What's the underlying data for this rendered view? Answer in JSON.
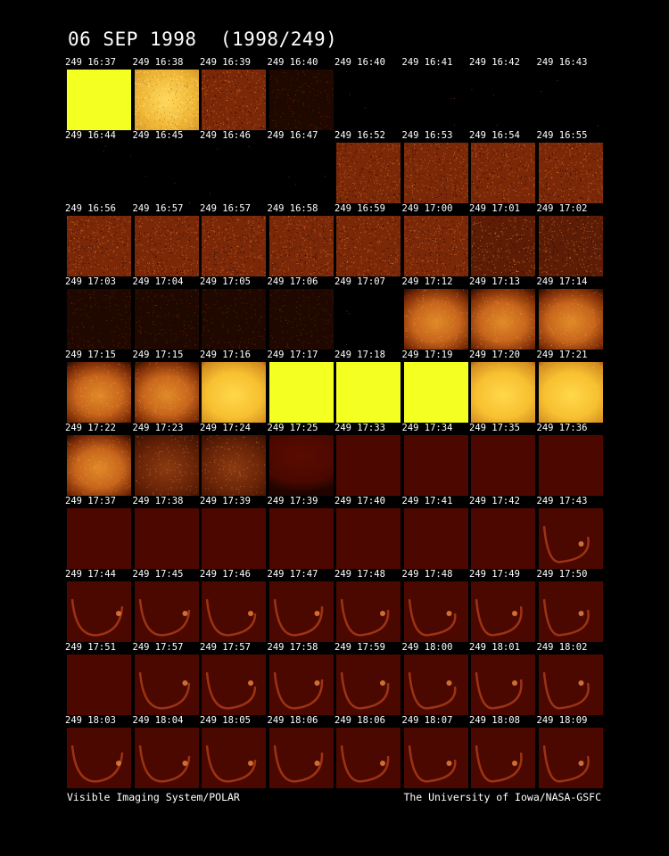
{
  "title": "06 SEP 1998  (1998/249)",
  "footer": {
    "left": "Visible Imaging System/POLAR",
    "right": "The University of Iowa/NASA-GSFC"
  },
  "frames": [
    [
      {
        "t": "249 16:37",
        "k": "sat"
      },
      {
        "t": "249 16:38",
        "k": "bright"
      },
      {
        "t": "249 16:39",
        "k": "noise"
      },
      {
        "t": "249 16:40",
        "k": "darknoise"
      },
      {
        "t": "249 16:40",
        "k": "black"
      },
      {
        "t": "249 16:41",
        "k": "black"
      },
      {
        "t": "249 16:42",
        "k": "black"
      },
      {
        "t": "249 16:43",
        "k": "black"
      }
    ],
    [
      {
        "t": "249 16:44",
        "k": "black"
      },
      {
        "t": "249 16:45",
        "k": "black"
      },
      {
        "t": "249 16:46",
        "k": "black"
      },
      {
        "t": "249 16:47",
        "k": "black"
      },
      {
        "t": "249 16:52",
        "k": "noise"
      },
      {
        "t": "249 16:53",
        "k": "noise"
      },
      {
        "t": "249 16:54",
        "k": "noise"
      },
      {
        "t": "249 16:55",
        "k": "noise"
      }
    ],
    [
      {
        "t": "249 16:56",
        "k": "noise"
      },
      {
        "t": "249 16:57",
        "k": "noise"
      },
      {
        "t": "249 16:57",
        "k": "noise"
      },
      {
        "t": "249 16:58",
        "k": "noise"
      },
      {
        "t": "249 16:59",
        "k": "noise"
      },
      {
        "t": "249 17:00",
        "k": "noise"
      },
      {
        "t": "249 17:01",
        "k": "noisedark"
      },
      {
        "t": "249 17:02",
        "k": "noisedark"
      }
    ],
    [
      {
        "t": "249 17:03",
        "k": "darknoise"
      },
      {
        "t": "249 17:04",
        "k": "darknoise"
      },
      {
        "t": "249 17:05",
        "k": "darknoise"
      },
      {
        "t": "249 17:06",
        "k": "darknoise"
      },
      {
        "t": "249 17:07",
        "k": "black"
      },
      {
        "t": "249 17:12",
        "k": "glow"
      },
      {
        "t": "249 17:13",
        "k": "glow"
      },
      {
        "t": "249 17:14",
        "k": "glow"
      }
    ],
    [
      {
        "t": "249 17:15",
        "k": "glow"
      },
      {
        "t": "249 17:15",
        "k": "glow"
      },
      {
        "t": "249 17:16",
        "k": "brightglow"
      },
      {
        "t": "249 17:17",
        "k": "sat"
      },
      {
        "t": "249 17:18",
        "k": "sat"
      },
      {
        "t": "249 17:19",
        "k": "sat"
      },
      {
        "t": "249 17:20",
        "k": "brightglow"
      },
      {
        "t": "249 17:21",
        "k": "brightglow"
      }
    ],
    [
      {
        "t": "249 17:22",
        "k": "glow"
      },
      {
        "t": "249 17:23",
        "k": "dimglow"
      },
      {
        "t": "249 17:24",
        "k": "dimglow"
      },
      {
        "t": "249 17:25",
        "k": "maroonarc"
      },
      {
        "t": "249 17:33",
        "k": "maroon"
      },
      {
        "t": "249 17:34",
        "k": "maroon"
      },
      {
        "t": "249 17:35",
        "k": "maroon"
      },
      {
        "t": "249 17:36",
        "k": "maroon"
      }
    ],
    [
      {
        "t": "249 17:37",
        "k": "maroon"
      },
      {
        "t": "249 17:38",
        "k": "maroon"
      },
      {
        "t": "249 17:39",
        "k": "maroon"
      },
      {
        "t": "249 17:39",
        "k": "maroon"
      },
      {
        "t": "249 17:40",
        "k": "maroon"
      },
      {
        "t": "249 17:41",
        "k": "maroon"
      },
      {
        "t": "249 17:42",
        "k": "maroon"
      },
      {
        "t": "249 17:43",
        "k": "oval"
      }
    ],
    [
      {
        "t": "249 17:44",
        "k": "oval"
      },
      {
        "t": "249 17:45",
        "k": "oval"
      },
      {
        "t": "249 17:46",
        "k": "oval"
      },
      {
        "t": "249 17:47",
        "k": "oval"
      },
      {
        "t": "249 17:48",
        "k": "oval"
      },
      {
        "t": "249 17:48",
        "k": "oval"
      },
      {
        "t": "249 17:49",
        "k": "oval"
      },
      {
        "t": "249 17:50",
        "k": "oval"
      }
    ],
    [
      {
        "t": "249 17:51",
        "k": "maroon"
      },
      {
        "t": "249 17:57",
        "k": "oval"
      },
      {
        "t": "249 17:57",
        "k": "oval"
      },
      {
        "t": "249 17:58",
        "k": "oval"
      },
      {
        "t": "249 17:59",
        "k": "oval"
      },
      {
        "t": "249 18:00",
        "k": "oval"
      },
      {
        "t": "249 18:01",
        "k": "oval"
      },
      {
        "t": "249 18:02",
        "k": "oval"
      }
    ],
    [
      {
        "t": "249 18:03",
        "k": "oval"
      },
      {
        "t": "249 18:04",
        "k": "oval"
      },
      {
        "t": "249 18:05",
        "k": "oval"
      },
      {
        "t": "249 18:06",
        "k": "oval"
      },
      {
        "t": "249 18:06",
        "k": "oval"
      },
      {
        "t": "249 18:07",
        "k": "oval"
      },
      {
        "t": "249 18:08",
        "k": "oval"
      },
      {
        "t": "249 18:09",
        "k": "oval"
      }
    ]
  ]
}
